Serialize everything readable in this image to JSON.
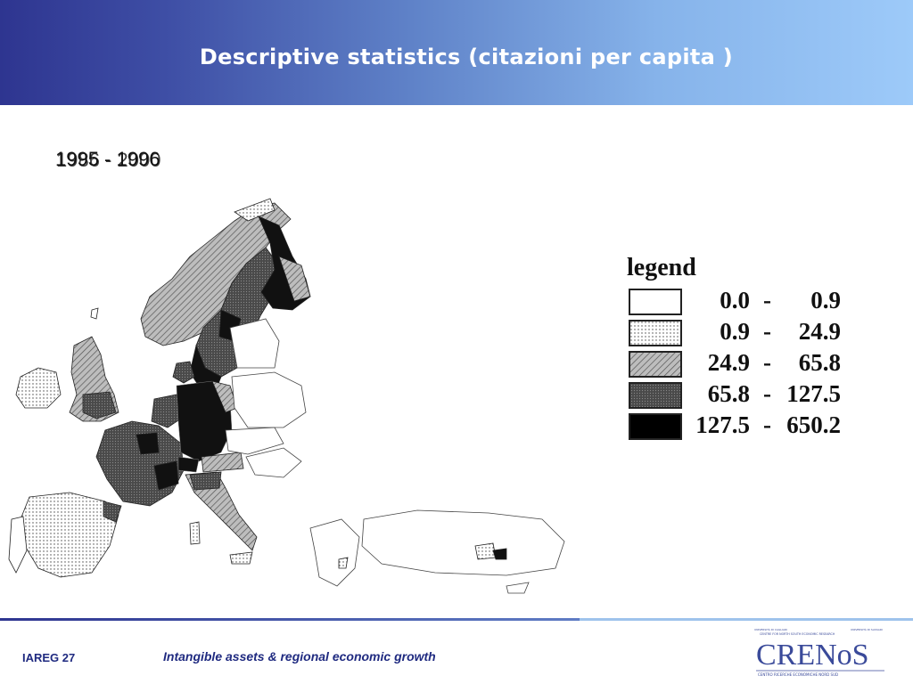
{
  "slide": {
    "title": "Descriptive statistics (citazioni per capita )",
    "period_a": "1995 - 1996",
    "period_b": "1986 - 2000"
  },
  "legend": {
    "title": "legend",
    "items": [
      {
        "low": "0.0",
        "high": "0.9",
        "pattern": "white"
      },
      {
        "low": "0.9",
        "high": "24.9",
        "pattern": "dots"
      },
      {
        "low": "24.9",
        "high": "65.8",
        "pattern": "hatch"
      },
      {
        "low": "65.8",
        "high": "127.5",
        "pattern": "dense"
      },
      {
        "low": "127.5",
        "high": "650.2",
        "pattern": "black"
      }
    ],
    "separator": "-"
  },
  "footer": {
    "left": "IAREG 27",
    "center": "Intangible assets & regional economic growth"
  },
  "logo": {
    "small_left": "UNIVERSITÀ DI CAGLIARI",
    "small_top": "CENTRE FOR NORTH SOUTH ECONOMIC RESEARCH",
    "small_right": "UNIVERSITÀ DI SASSARI",
    "name": "CRENoS",
    "subtitle": "CENTRO RICERCHE ECONOMICHE NORD SUD"
  },
  "colors": {
    "header_start": "#2e3590",
    "header_end": "#9dcaf9",
    "title_text": "#ffffff",
    "footer_text": "#1f2a80",
    "logo_blue": "#3a4a9a"
  }
}
